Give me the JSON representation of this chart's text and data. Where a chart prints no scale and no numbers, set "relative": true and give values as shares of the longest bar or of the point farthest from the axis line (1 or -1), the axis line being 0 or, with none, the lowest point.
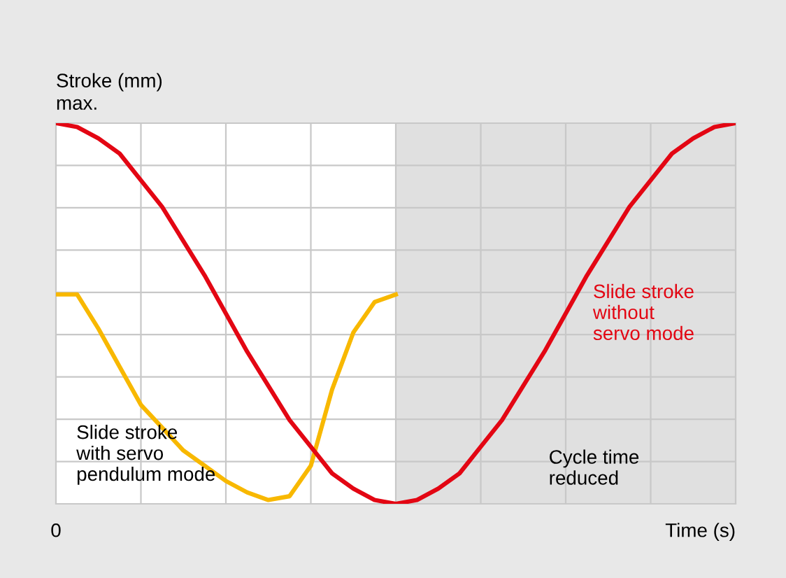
{
  "chart_data": {
    "type": "line",
    "relative": true,
    "ylabel": "Stroke (mm)",
    "xlabel": "Time (s)",
    "categories": [
      null,
      null,
      null,
      null,
      null,
      null,
      null,
      null,
      null,
      null,
      null,
      null,
      null,
      null,
      null,
      null,
      null,
      null,
      null,
      null,
      null,
      null,
      null,
      null,
      null,
      null,
      null,
      null,
      null,
      null,
      null,
      null,
      null
    ],
    "grid": true,
    "marker": "none",
    "line_style": "solid",
    "annotations": [
      "max.",
      "0",
      "Cycle time\nreduced"
    ],
    "series": [
      {
        "name": "Slide stroke\nwith servo\npendulum mode",
        "color": "#f8b800",
        "values": [
          0.55,
          0.55,
          0.46,
          0.36,
          0.26,
          0.2,
          0.14,
          0.1,
          0.06,
          0.03,
          0.01,
          0.02,
          0.1,
          0.3,
          0.45,
          0.53,
          0.55,
          null,
          null,
          null,
          null,
          null,
          null,
          null,
          null,
          null,
          null,
          null,
          null,
          null,
          null,
          null,
          null
        ]
      },
      {
        "name": "Slide stroke\nwithout\nservo mode",
        "color": "#e30613",
        "values": [
          1,
          0.99,
          0.96,
          0.92,
          0.85,
          0.78,
          0.69,
          0.6,
          0.5,
          0.4,
          0.31,
          0.22,
          0.15,
          0.08,
          0.04,
          0.01,
          0,
          0.01,
          0.04,
          0.08,
          0.15,
          0.22,
          0.31,
          0.4,
          0.5,
          0.6,
          0.69,
          0.78,
          0.85,
          0.92,
          0.96,
          0.99,
          1
        ]
      }
    ]
  }
}
